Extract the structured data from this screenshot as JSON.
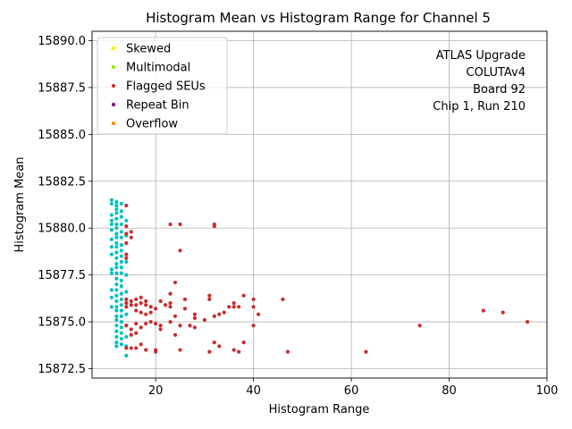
{
  "chart_data": {
    "type": "scatter",
    "title": "Histogram Mean vs Histogram Range for Channel 5",
    "xlabel": "Histogram Range",
    "ylabel": "Histogram Mean",
    "xlim": [
      7,
      100
    ],
    "ylim": [
      15872.0,
      15890.5
    ],
    "xticks": [
      20,
      40,
      60,
      80,
      100
    ],
    "yticks": [
      15872.5,
      15875.0,
      15877.5,
      15880.0,
      15882.5,
      15885.0,
      15887.5,
      15890.0
    ],
    "xtick_labels": [
      "20",
      "40",
      "60",
      "80",
      "100"
    ],
    "ytick_labels": [
      "15872.5",
      "15875.0",
      "15877.5",
      "15880.0",
      "15882.5",
      "15885.0",
      "15887.5",
      "15890.0"
    ],
    "grid": true,
    "legend_position": "top-left",
    "annotation_lines": [
      "ATLAS Upgrade",
      "COLUTAv4",
      "Board 92",
      "Chip 1, Run 210"
    ],
    "colors": {
      "normal": "#00c0c0",
      "skewed": "#f5f500",
      "multimodal": "#90ee00",
      "flagged": "#cc2b2b",
      "repeat": "#800080",
      "overflow": "#ff8c00"
    },
    "series": [
      {
        "name": "",
        "color_key": "normal",
        "points": [
          [
            11,
            15881.5
          ],
          [
            11,
            15881.3
          ],
          [
            11,
            15880.7
          ],
          [
            11,
            15880.4
          ],
          [
            11,
            15880.2
          ],
          [
            11,
            15879.9
          ],
          [
            11,
            15879.4
          ],
          [
            11,
            15879.0
          ],
          [
            11,
            15878.6
          ],
          [
            11,
            15877.8
          ],
          [
            11,
            15877.6
          ],
          [
            11,
            15876.7
          ],
          [
            11,
            15876.3
          ],
          [
            11,
            15875.8
          ],
          [
            12,
            15881.4
          ],
          [
            12,
            15881.2
          ],
          [
            12,
            15881.0
          ],
          [
            12,
            15880.8
          ],
          [
            12,
            15880.5
          ],
          [
            12,
            15880.2
          ],
          [
            12,
            15880.0
          ],
          [
            12,
            15879.7
          ],
          [
            12,
            15879.5
          ],
          [
            12,
            15879.2
          ],
          [
            12,
            15879.0
          ],
          [
            12,
            15878.7
          ],
          [
            12,
            15878.4
          ],
          [
            12,
            15878.1
          ],
          [
            12,
            15877.9
          ],
          [
            12,
            15877.6
          ],
          [
            12,
            15877.3
          ],
          [
            12,
            15877.0
          ],
          [
            12,
            15876.7
          ],
          [
            12,
            15876.4
          ],
          [
            12,
            15876.1
          ],
          [
            12,
            15875.8
          ],
          [
            12,
            15875.6
          ],
          [
            12,
            15875.3
          ],
          [
            12,
            15875.1
          ],
          [
            12,
            15874.8
          ],
          [
            12,
            15874.5
          ],
          [
            12,
            15874.2
          ],
          [
            12,
            15873.9
          ],
          [
            12,
            15873.7
          ],
          [
            13,
            15881.3
          ],
          [
            13,
            15880.9
          ],
          [
            13,
            15880.6
          ],
          [
            13,
            15880.2
          ],
          [
            13,
            15879.8
          ],
          [
            13,
            15879.5
          ],
          [
            13,
            15879.1
          ],
          [
            13,
            15878.8
          ],
          [
            13,
            15878.5
          ],
          [
            13,
            15878.2
          ],
          [
            13,
            15877.9
          ],
          [
            13,
            15877.6
          ],
          [
            13,
            15877.2
          ],
          [
            13,
            15876.9
          ],
          [
            13,
            15876.5
          ],
          [
            13,
            15876.2
          ],
          [
            13,
            15875.9
          ],
          [
            13,
            15875.6
          ],
          [
            13,
            15875.3
          ],
          [
            13,
            15875.0
          ],
          [
            13,
            15874.7
          ],
          [
            13,
            15874.4
          ],
          [
            13,
            15874.1
          ],
          [
            13,
            15873.8
          ],
          [
            14,
            15880.4
          ],
          [
            14,
            15879.6
          ],
          [
            14,
            15878.2
          ],
          [
            14,
            15877.5
          ],
          [
            14,
            15876.6
          ],
          [
            14,
            15876.0
          ],
          [
            14,
            15875.4
          ],
          [
            14,
            15874.8
          ],
          [
            14,
            15874.2
          ],
          [
            14,
            15873.7
          ],
          [
            14,
            15873.2
          ]
        ]
      },
      {
        "name": "Skewed",
        "color_key": "skewed",
        "points": [
          [
            11,
            15889.5
          ],
          [
            12,
            15889.7
          ]
        ]
      },
      {
        "name": "Multimodal",
        "color_key": "multimodal",
        "points": []
      },
      {
        "name": "Flagged SEUs",
        "color_key": "flagged",
        "points": [
          [
            14,
            15881.2
          ],
          [
            14,
            15880.1
          ],
          [
            14,
            15879.7
          ],
          [
            14,
            15879.2
          ],
          [
            14,
            15878.6
          ],
          [
            14,
            15878.4
          ],
          [
            15,
            15879.8
          ],
          [
            15,
            15879.5
          ],
          [
            14,
            15876.2
          ],
          [
            14,
            15876.0
          ],
          [
            14,
            15875.8
          ],
          [
            15,
            15876.1
          ],
          [
            15,
            15875.9
          ],
          [
            16,
            15876.2
          ],
          [
            16,
            15875.9
          ],
          [
            16,
            15875.6
          ],
          [
            17,
            15876.3
          ],
          [
            17,
            15876.0
          ],
          [
            17,
            15875.5
          ],
          [
            18,
            15876.1
          ],
          [
            18,
            15875.9
          ],
          [
            18,
            15875.4
          ],
          [
            19,
            15875.8
          ],
          [
            19,
            15875.5
          ],
          [
            20,
            15875.7
          ],
          [
            21,
            15876.1
          ],
          [
            22,
            15875.9
          ],
          [
            23,
            15876.5
          ],
          [
            23,
            15876.0
          ],
          [
            23,
            15875.8
          ],
          [
            24,
            15877.1
          ],
          [
            24,
            15875.3
          ],
          [
            26,
            15876.2
          ],
          [
            26,
            15875.7
          ],
          [
            28,
            15875.4
          ],
          [
            28,
            15875.2
          ],
          [
            30,
            15875.1
          ],
          [
            31,
            15876.4
          ],
          [
            31,
            15876.2
          ],
          [
            32,
            15875.3
          ],
          [
            33,
            15875.4
          ],
          [
            34,
            15875.5
          ],
          [
            35,
            15875.8
          ],
          [
            36,
            15876.0
          ],
          [
            36,
            15875.8
          ],
          [
            37,
            15875.8
          ],
          [
            38,
            15876.4
          ],
          [
            40,
            15876.2
          ],
          [
            40,
            15875.8
          ],
          [
            41,
            15875.4
          ],
          [
            46,
            15876.2
          ],
          [
            14,
            15874.8
          ],
          [
            15,
            15874.6
          ],
          [
            15,
            15874.3
          ],
          [
            16,
            15874.9
          ],
          [
            16,
            15874.4
          ],
          [
            17,
            15874.7
          ],
          [
            18,
            15874.9
          ],
          [
            19,
            15875.0
          ],
          [
            20,
            15874.9
          ],
          [
            21,
            15874.8
          ],
          [
            21,
            15874.6
          ],
          [
            23,
            15875.0
          ],
          [
            24,
            15874.3
          ],
          [
            25,
            15874.8
          ],
          [
            27,
            15874.8
          ],
          [
            28,
            15874.7
          ],
          [
            14,
            15873.6
          ],
          [
            15,
            15873.6
          ],
          [
            16,
            15873.6
          ],
          [
            17,
            15873.8
          ],
          [
            18,
            15873.5
          ],
          [
            20,
            15873.5
          ],
          [
            20,
            15873.4
          ],
          [
            25,
            15873.5
          ],
          [
            31,
            15873.4
          ],
          [
            32,
            15873.9
          ],
          [
            33,
            15873.7
          ],
          [
            36,
            15873.5
          ],
          [
            37,
            15873.4
          ],
          [
            38,
            15873.9
          ],
          [
            40,
            15874.8
          ],
          [
            47,
            15873.4
          ],
          [
            63,
            15873.4
          ],
          [
            74,
            15874.8
          ],
          [
            87,
            15875.6
          ],
          [
            91,
            15875.5
          ],
          [
            96,
            15875.0
          ],
          [
            23,
            15880.2
          ],
          [
            25,
            15880.2
          ],
          [
            25,
            15878.8
          ],
          [
            32,
            15880.2
          ],
          [
            32,
            15880.1
          ]
        ]
      },
      {
        "name": "Repeat Bin",
        "color_key": "repeat",
        "points": []
      },
      {
        "name": "Overflow",
        "color_key": "overflow",
        "points": []
      }
    ],
    "legend": [
      {
        "label": "Skewed",
        "color_key": "skewed"
      },
      {
        "label": "Multimodal",
        "color_key": "multimodal"
      },
      {
        "label": "Flagged SEUs",
        "color_key": "flagged"
      },
      {
        "label": "Repeat Bin",
        "color_key": "repeat"
      },
      {
        "label": "Overflow",
        "color_key": "overflow"
      }
    ]
  }
}
